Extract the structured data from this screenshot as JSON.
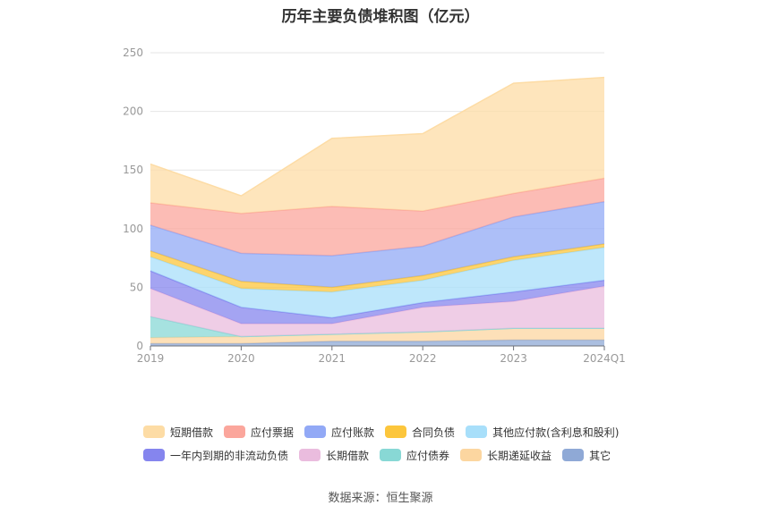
{
  "chart_data": {
    "type": "area",
    "title": "历年主要负债堆积图（亿元）",
    "categories": [
      "2019",
      "2020",
      "2021",
      "2022",
      "2023",
      "2024Q1"
    ],
    "ylim": [
      0,
      250
    ],
    "yticks": [
      0,
      50,
      100,
      150,
      200,
      250
    ],
    "grid": true,
    "legend_position": "bottom",
    "series": [
      {
        "name": "其它",
        "color": "#8fa9d6",
        "values": [
          2,
          2,
          4,
          4,
          5,
          5
        ]
      },
      {
        "name": "长期递延收益",
        "color": "#fcd6a0",
        "values": [
          5,
          6,
          6,
          8,
          10,
          10
        ]
      },
      {
        "name": "应付债券",
        "color": "#88d8d5",
        "values": [
          18,
          0,
          0,
          0,
          0,
          0
        ]
      },
      {
        "name": "长期借款",
        "color": "#eabcde",
        "values": [
          24,
          11,
          9,
          21,
          23,
          36
        ]
      },
      {
        "name": "一年内到期的非流动负债",
        "color": "#8585ee",
        "values": [
          15,
          14,
          5,
          4,
          8,
          5
        ]
      },
      {
        "name": "其他应付款(含利息和股利)",
        "color": "#a8dffa",
        "values": [
          12,
          16,
          22,
          19,
          27,
          28
        ]
      },
      {
        "name": "合同负债",
        "color": "#fcc63c",
        "values": [
          5,
          6,
          4,
          4,
          3,
          3
        ]
      },
      {
        "name": "应付账款",
        "color": "#92a9f6",
        "values": [
          22,
          24,
          27,
          25,
          34,
          36
        ]
      },
      {
        "name": "应付票据",
        "color": "#fba69c",
        "values": [
          19,
          34,
          42,
          30,
          20,
          20
        ]
      },
      {
        "name": "短期借款",
        "color": "#fddca5",
        "values": [
          33,
          15,
          58,
          66,
          94,
          86
        ]
      }
    ]
  },
  "legend": {
    "row1": [
      "短期借款",
      "应付票据",
      "应付账款",
      "合同负债",
      "其他应付款(含利息和股利)"
    ],
    "row2": [
      "一年内到期的非流动负债",
      "长期借款",
      "应付债券",
      "长期递延收益",
      "其它"
    ]
  },
  "source": "数据来源：恒生聚源"
}
